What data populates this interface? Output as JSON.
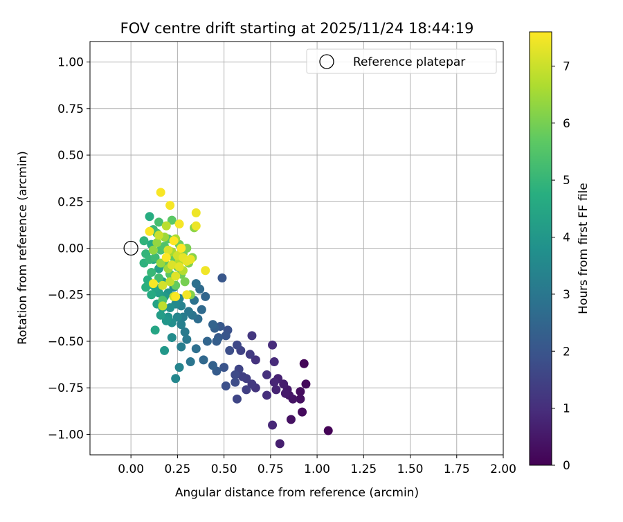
{
  "chart_data": {
    "type": "scatter",
    "title": "FOV centre drift starting at 2025/11/24 18:44:19",
    "xlabel": "Angular distance from reference (arcmin)",
    "ylabel": "Rotation from reference (arcmin)",
    "xlim": [
      -0.22,
      2.0
    ],
    "ylim": [
      -1.11,
      1.11
    ],
    "xticks": [
      0.0,
      0.25,
      0.5,
      0.75,
      1.0,
      1.25,
      1.5,
      1.75,
      2.0
    ],
    "xtick_labels": [
      "0.00",
      "0.25",
      "0.50",
      "0.75",
      "1.00",
      "1.25",
      "1.50",
      "1.75",
      "2.00"
    ],
    "yticks": [
      1.0,
      0.75,
      0.5,
      0.25,
      0.0,
      -0.25,
      -0.5,
      -0.75,
      -1.0
    ],
    "ytick_labels": [
      "1.00",
      "0.75",
      "0.50",
      "0.25",
      "0.00",
      "−0.25",
      "−0.50",
      "−0.75",
      "−1.00"
    ],
    "grid": true,
    "legend": {
      "placement": "top-right",
      "entries": [
        "Reference platepar"
      ]
    },
    "reference_point": {
      "x": 0.0,
      "y": 0.0,
      "label": "Reference platepar"
    },
    "colorbar": {
      "label": "Hours from first FF file",
      "range": [
        0,
        7.6
      ],
      "ticks": [
        0,
        1,
        2,
        3,
        4,
        5,
        6,
        7
      ],
      "tick_labels": [
        "0",
        "1",
        "2",
        "3",
        "4",
        "5",
        "6",
        "7"
      ],
      "colormap": "viridis"
    },
    "points": [
      [
        1.06,
        -0.98,
        0.05
      ],
      [
        0.93,
        -0.62,
        0.1
      ],
      [
        0.94,
        -0.73,
        0.15
      ],
      [
        0.92,
        -0.88,
        0.2
      ],
      [
        0.91,
        -0.77,
        0.25
      ],
      [
        0.91,
        -0.81,
        0.3
      ],
      [
        0.86,
        -0.92,
        0.35
      ],
      [
        0.87,
        -0.81,
        0.4
      ],
      [
        0.85,
        -0.79,
        0.45
      ],
      [
        0.84,
        -0.76,
        0.5
      ],
      [
        0.83,
        -0.78,
        0.55
      ],
      [
        0.82,
        -0.73,
        0.6
      ],
      [
        0.8,
        -1.05,
        0.65
      ],
      [
        0.79,
        -0.7,
        0.7
      ],
      [
        0.78,
        -0.76,
        0.75
      ],
      [
        0.77,
        -0.72,
        0.8
      ],
      [
        0.76,
        -0.95,
        0.85
      ],
      [
        0.77,
        -0.61,
        0.9
      ],
      [
        0.76,
        -0.52,
        0.95
      ],
      [
        0.73,
        -0.79,
        1.0
      ],
      [
        0.73,
        -0.68,
        1.05
      ],
      [
        0.67,
        -0.6,
        1.1
      ],
      [
        0.67,
        -0.75,
        1.15
      ],
      [
        0.65,
        -0.47,
        1.2
      ],
      [
        0.65,
        -0.73,
        1.25
      ],
      [
        0.64,
        -0.57,
        1.3
      ],
      [
        0.62,
        -0.7,
        1.35
      ],
      [
        0.62,
        -0.76,
        1.4
      ],
      [
        0.6,
        -0.69,
        1.45
      ],
      [
        0.59,
        -0.55,
        1.5
      ],
      [
        0.58,
        -0.65,
        1.55
      ],
      [
        0.57,
        -0.81,
        1.6
      ],
      [
        0.57,
        -0.52,
        1.65
      ],
      [
        0.56,
        -0.68,
        1.7
      ],
      [
        0.56,
        -0.72,
        1.75
      ],
      [
        0.53,
        -0.55,
        1.8
      ],
      [
        0.51,
        -0.74,
        1.85
      ],
      [
        0.52,
        -0.44,
        1.9
      ],
      [
        0.5,
        -0.64,
        1.95
      ],
      [
        0.51,
        -0.47,
        2.0
      ],
      [
        0.49,
        -0.16,
        2.05
      ],
      [
        0.48,
        -0.42,
        2.1
      ],
      [
        0.47,
        -0.48,
        2.15
      ],
      [
        0.46,
        -0.66,
        2.2
      ],
      [
        0.46,
        -0.5,
        2.25
      ],
      [
        0.45,
        -0.43,
        2.3
      ],
      [
        0.44,
        -0.63,
        2.35
      ],
      [
        0.44,
        -0.41,
        2.4
      ],
      [
        0.41,
        -0.5,
        2.45
      ],
      [
        0.4,
        -0.26,
        2.5
      ],
      [
        0.39,
        -0.6,
        2.55
      ],
      [
        0.38,
        -0.33,
        2.6
      ],
      [
        0.37,
        -0.22,
        2.65
      ],
      [
        0.36,
        -0.38,
        2.7
      ],
      [
        0.35,
        -0.54,
        2.75
      ],
      [
        0.35,
        -0.19,
        2.8
      ],
      [
        0.34,
        -0.28,
        2.85
      ],
      [
        0.33,
        -0.36,
        2.9
      ],
      [
        0.32,
        -0.61,
        2.95
      ],
      [
        0.31,
        -0.34,
        3.0
      ],
      [
        0.3,
        -0.49,
        3.05
      ],
      [
        0.29,
        -0.45,
        3.1
      ],
      [
        0.28,
        -0.37,
        3.15
      ],
      [
        0.27,
        -0.53,
        3.2
      ],
      [
        0.27,
        -0.41,
        3.25
      ],
      [
        0.27,
        -0.31,
        3.3
      ],
      [
        0.26,
        -0.27,
        3.35
      ],
      [
        0.26,
        -0.64,
        3.4
      ],
      [
        0.25,
        -0.37,
        3.45
      ],
      [
        0.24,
        -0.7,
        3.5
      ],
      [
        0.24,
        -0.3,
        3.55
      ],
      [
        0.23,
        -0.21,
        3.6
      ],
      [
        0.22,
        -0.48,
        3.65
      ],
      [
        0.22,
        -0.4,
        3.7
      ],
      [
        0.21,
        -0.32,
        3.75
      ],
      [
        0.21,
        -0.14,
        3.8
      ],
      [
        0.2,
        -0.37,
        3.85
      ],
      [
        0.2,
        -0.24,
        3.9
      ],
      [
        0.19,
        -0.39,
        3.95
      ],
      [
        0.18,
        -0.55,
        4.0
      ],
      [
        0.18,
        -0.26,
        4.05
      ],
      [
        0.17,
        -0.32,
        4.1
      ],
      [
        0.17,
        -0.18,
        4.15
      ],
      [
        0.16,
        -0.36,
        4.2
      ],
      [
        0.15,
        -0.24,
        4.25
      ],
      [
        0.15,
        -0.11,
        4.3
      ],
      [
        0.14,
        -0.3,
        4.35
      ],
      [
        0.13,
        -0.21,
        4.4
      ],
      [
        0.13,
        -0.44,
        4.45
      ],
      [
        0.12,
        -0.2,
        4.5
      ],
      [
        0.12,
        -0.06,
        4.55
      ],
      [
        0.11,
        -0.25,
        4.6
      ],
      [
        0.11,
        0.02,
        4.65
      ],
      [
        0.1,
        0.17,
        4.7
      ],
      [
        0.09,
        -0.17,
        4.75
      ],
      [
        0.08,
        -0.21,
        4.8
      ],
      [
        0.07,
        -0.08,
        4.85
      ],
      [
        0.07,
        0.04,
        4.9
      ],
      [
        0.08,
        -0.03,
        4.95
      ],
      [
        0.1,
        -0.06,
        5.0
      ],
      [
        0.11,
        -0.13,
        5.05
      ],
      [
        0.12,
        0.1,
        5.1
      ],
      [
        0.13,
        -0.05,
        5.15
      ],
      [
        0.14,
        0.08,
        5.2
      ],
      [
        0.15,
        -0.16,
        5.25
      ],
      [
        0.15,
        0.14,
        5.3
      ],
      [
        0.16,
        -0.01,
        5.35
      ],
      [
        0.17,
        -0.28,
        5.4
      ],
      [
        0.18,
        0.01,
        5.45
      ],
      [
        0.19,
        -0.09,
        5.5
      ],
      [
        0.2,
        0.05,
        5.55
      ],
      [
        0.21,
        -0.14,
        5.6
      ],
      [
        0.22,
        0.15,
        5.65
      ],
      [
        0.23,
        -0.05,
        5.7
      ],
      [
        0.24,
        -0.2,
        5.75
      ],
      [
        0.25,
        -0.1,
        5.8
      ],
      [
        0.26,
        0.02,
        5.85
      ],
      [
        0.27,
        -0.14,
        5.9
      ],
      [
        0.28,
        -0.03,
        5.95
      ],
      [
        0.29,
        -0.18,
        6.0
      ],
      [
        0.3,
        0.0,
        6.05
      ],
      [
        0.31,
        -0.08,
        6.1
      ],
      [
        0.32,
        -0.25,
        6.15
      ],
      [
        0.33,
        -0.05,
        6.2
      ],
      [
        0.34,
        0.11,
        6.25
      ],
      [
        0.12,
        -0.01,
        6.3
      ],
      [
        0.14,
        0.03,
        6.35
      ],
      [
        0.16,
        -0.08,
        6.4
      ],
      [
        0.18,
        0.06,
        6.45
      ],
      [
        0.2,
        -0.11,
        6.5
      ],
      [
        0.22,
        -0.02,
        6.55
      ],
      [
        0.24,
        0.05,
        6.6
      ],
      [
        0.26,
        -0.07,
        6.7
      ],
      [
        0.28,
        -0.12,
        6.75
      ],
      [
        0.19,
        0.12,
        6.8
      ],
      [
        0.17,
        -0.31,
        6.85
      ],
      [
        0.21,
        -0.18,
        6.9
      ],
      [
        0.23,
        -0.26,
        6.95
      ],
      [
        0.15,
        0.07,
        7.0
      ],
      [
        0.25,
        -0.04,
        7.05
      ],
      [
        0.17,
        -0.2,
        7.1
      ],
      [
        0.2,
        -0.01,
        7.15
      ],
      [
        0.22,
        -0.09,
        7.2
      ],
      [
        0.24,
        -0.15,
        7.25
      ],
      [
        0.26,
        -0.1,
        7.3
      ],
      [
        0.28,
        -0.05,
        7.32
      ],
      [
        0.3,
        -0.07,
        7.35
      ],
      [
        0.32,
        -0.06,
        7.38
      ],
      [
        0.35,
        0.12,
        7.4
      ],
      [
        0.35,
        0.19,
        7.42
      ],
      [
        0.4,
        -0.12,
        7.45
      ],
      [
        0.3,
        -0.25,
        7.47
      ],
      [
        0.26,
        0.13,
        7.5
      ],
      [
        0.21,
        0.23,
        7.52
      ],
      [
        0.16,
        0.3,
        7.54
      ],
      [
        0.1,
        0.09,
        7.55
      ],
      [
        0.12,
        -0.19,
        7.56
      ],
      [
        0.24,
        -0.26,
        7.57
      ],
      [
        0.19,
        -0.05,
        7.58
      ],
      [
        0.23,
        0.04,
        7.59
      ],
      [
        0.27,
        0.0,
        7.6
      ]
    ]
  }
}
